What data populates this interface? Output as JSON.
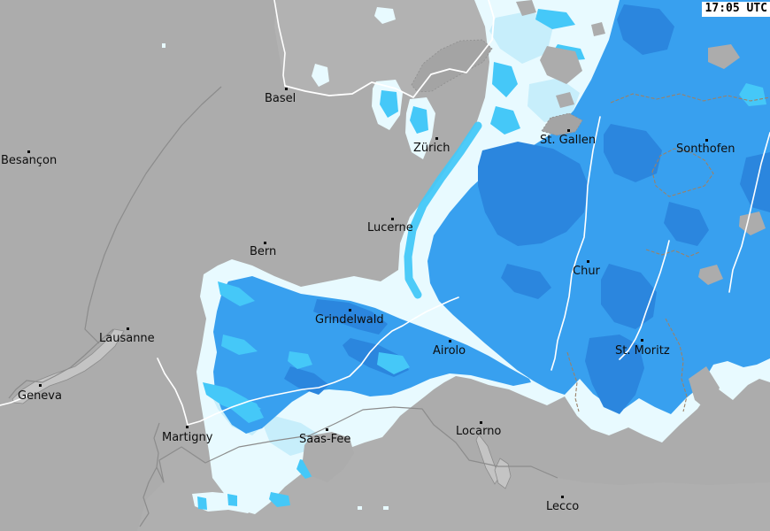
{
  "header": {
    "timestamp": "17:05 UTC"
  },
  "map": {
    "type": "precipitation-radar",
    "palette": {
      "land": "#ACACAC",
      "land_alt": "#B2B2B2",
      "land_alt2": "#AFAFAF",
      "lake": "#C4C4C4",
      "river": "#FFFFFF",
      "border_white": "#FFFFFF",
      "border_gray": "#8C8C8C",
      "border_brown": "#9B8168",
      "rain_light": "#E8FAFF",
      "rain_light_mid": "#C7EEFB",
      "rain_cyan": "#45C8F8",
      "rain_blue": "#38A0EF",
      "rain_blue_dark": "#2B86DE"
    },
    "cities": [
      {
        "name": "Besançon",
        "dot": [
          31,
          170
        ],
        "label": [
          1,
          175
        ]
      },
      {
        "name": "Basel",
        "dot": [
          322,
          99
        ],
        "label": [
          299,
          105
        ]
      },
      {
        "name": "Zürich",
        "dot": [
          492,
          155
        ],
        "label": [
          467,
          161
        ]
      },
      {
        "name": "St. Gallen",
        "dot": [
          641,
          146
        ],
        "label": [
          610,
          152
        ]
      },
      {
        "name": "Sonthofen",
        "dot": [
          797,
          157
        ],
        "label": [
          764,
          162
        ]
      },
      {
        "name": "Lucerne",
        "dot": [
          442,
          246
        ],
        "label": [
          415,
          251
        ]
      },
      {
        "name": "Bern",
        "dot": [
          298,
          273
        ],
        "label": [
          282,
          278
        ]
      },
      {
        "name": "Chur",
        "dot": [
          663,
          294
        ],
        "label": [
          647,
          300
        ]
      },
      {
        "name": "Grindelwald",
        "dot": [
          394,
          349
        ],
        "label": [
          356,
          355
        ]
      },
      {
        "name": "Lausanne",
        "dot": [
          143,
          370
        ],
        "label": [
          112,
          376
        ]
      },
      {
        "name": "Airolo",
        "dot": [
          507,
          384
        ],
        "label": [
          489,
          390
        ]
      },
      {
        "name": "St. Moritz",
        "dot": [
          724,
          383
        ],
        "label": [
          695,
          390
        ]
      },
      {
        "name": "Geneva",
        "dot": [
          44,
          434
        ],
        "label": [
          20,
          441
        ]
      },
      {
        "name": "Martigny",
        "dot": [
          210,
          481
        ],
        "label": [
          183,
          488
        ]
      },
      {
        "name": "Saas-Fee",
        "dot": [
          368,
          484
        ],
        "label": [
          338,
          490
        ]
      },
      {
        "name": "Locarno",
        "dot": [
          542,
          476
        ],
        "label": [
          515,
          481
        ]
      },
      {
        "name": "Lecco",
        "dot": [
          634,
          560
        ],
        "label": [
          617,
          566
        ]
      }
    ]
  }
}
